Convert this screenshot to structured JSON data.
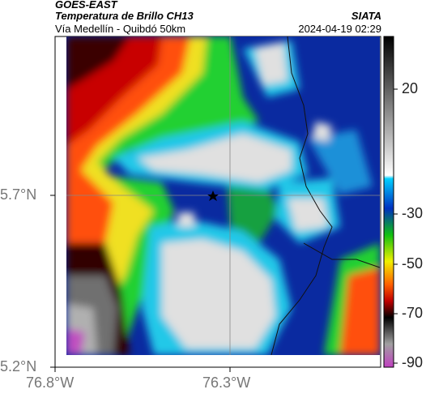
{
  "header": {
    "satellite": "GOES-EAST",
    "product": "Temperatura de Brillo CH13",
    "route": "Vía Medellín - Quibdó 50km",
    "org": "SIATA",
    "datetime": "2024-04-19 02:29"
  },
  "axes": {
    "y_ticks": [
      "5.7°N",
      "5.2°N"
    ],
    "x_ticks": [
      "76.8°W",
      "76.3°W"
    ]
  },
  "colorbar": {
    "tick_labels": [
      "20",
      "-30",
      "-50",
      "-70",
      "-90"
    ]
  },
  "map": {
    "marker": "star",
    "gridlines": true
  }
}
